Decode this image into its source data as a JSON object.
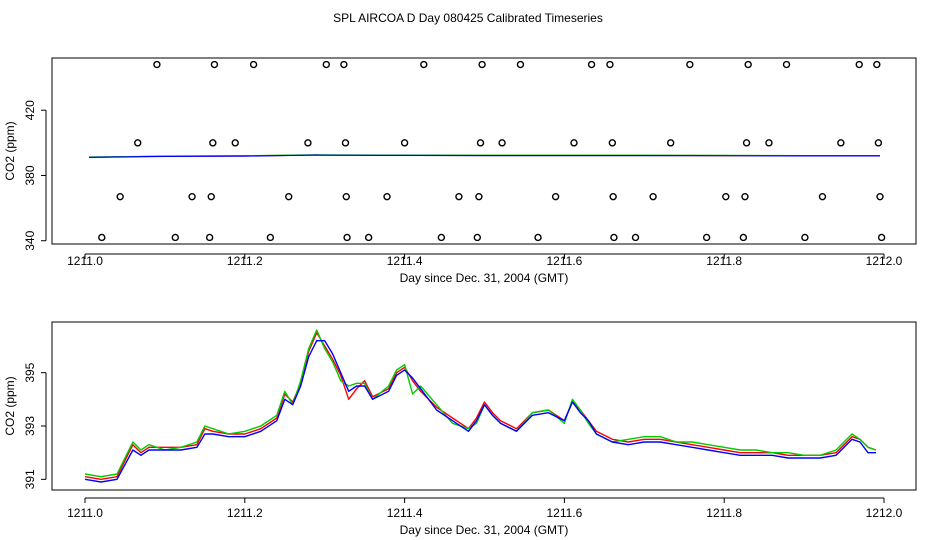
{
  "title": "SPL AIRCOA D  Day 080425  Calibrated Timeseries",
  "chart_data": [
    {
      "type": "scatter",
      "xlabel": "Day since Dec. 31, 2004 (GMT)",
      "ylabel": "CO2 (ppm)",
      "xlim": [
        1211.0,
        1212.0
      ],
      "ylim": [
        338,
        452
      ],
      "xticks": [
        "1211.0",
        "1211.2",
        "1211.4",
        "1211.6",
        "1211.8",
        "1212.0"
      ],
      "yticks": [
        "340",
        "380",
        "420"
      ],
      "points": [
        {
          "x": 1211.021,
          "y": 342
        },
        {
          "x": 1211.113,
          "y": 342
        },
        {
          "x": 1211.156,
          "y": 342
        },
        {
          "x": 1211.232,
          "y": 342
        },
        {
          "x": 1211.328,
          "y": 342
        },
        {
          "x": 1211.355,
          "y": 342
        },
        {
          "x": 1211.446,
          "y": 342
        },
        {
          "x": 1211.491,
          "y": 342
        },
        {
          "x": 1211.567,
          "y": 342
        },
        {
          "x": 1211.662,
          "y": 342
        },
        {
          "x": 1211.689,
          "y": 342
        },
        {
          "x": 1211.778,
          "y": 342
        },
        {
          "x": 1211.824,
          "y": 342
        },
        {
          "x": 1211.901,
          "y": 342
        },
        {
          "x": 1211.997,
          "y": 342
        },
        {
          "x": 1211.044,
          "y": 367
        },
        {
          "x": 1211.134,
          "y": 367
        },
        {
          "x": 1211.158,
          "y": 367
        },
        {
          "x": 1211.255,
          "y": 367
        },
        {
          "x": 1211.327,
          "y": 367
        },
        {
          "x": 1211.378,
          "y": 367
        },
        {
          "x": 1211.468,
          "y": 367
        },
        {
          "x": 1211.493,
          "y": 367
        },
        {
          "x": 1211.589,
          "y": 367
        },
        {
          "x": 1211.661,
          "y": 367
        },
        {
          "x": 1211.711,
          "y": 367
        },
        {
          "x": 1211.802,
          "y": 367
        },
        {
          "x": 1211.826,
          "y": 367
        },
        {
          "x": 1211.923,
          "y": 367
        },
        {
          "x": 1211.995,
          "y": 367
        },
        {
          "x": 1211.066,
          "y": 400
        },
        {
          "x": 1211.16,
          "y": 400
        },
        {
          "x": 1211.188,
          "y": 400
        },
        {
          "x": 1211.279,
          "y": 400
        },
        {
          "x": 1211.326,
          "y": 400
        },
        {
          "x": 1211.4,
          "y": 400
        },
        {
          "x": 1211.495,
          "y": 400
        },
        {
          "x": 1211.522,
          "y": 400
        },
        {
          "x": 1211.612,
          "y": 400
        },
        {
          "x": 1211.66,
          "y": 400
        },
        {
          "x": 1211.733,
          "y": 400
        },
        {
          "x": 1211.828,
          "y": 400
        },
        {
          "x": 1211.856,
          "y": 400
        },
        {
          "x": 1211.946,
          "y": 400
        },
        {
          "x": 1211.993,
          "y": 400
        },
        {
          "x": 1211.09,
          "y": 448
        },
        {
          "x": 1211.162,
          "y": 448
        },
        {
          "x": 1211.211,
          "y": 448
        },
        {
          "x": 1211.302,
          "y": 448
        },
        {
          "x": 1211.324,
          "y": 448
        },
        {
          "x": 1211.424,
          "y": 448
        },
        {
          "x": 1211.497,
          "y": 448
        },
        {
          "x": 1211.545,
          "y": 448
        },
        {
          "x": 1211.634,
          "y": 448
        },
        {
          "x": 1211.657,
          "y": 448
        },
        {
          "x": 1211.757,
          "y": 448
        },
        {
          "x": 1211.83,
          "y": 448
        },
        {
          "x": 1211.878,
          "y": 448
        },
        {
          "x": 1211.969,
          "y": 448
        },
        {
          "x": 1211.991,
          "y": 448
        }
      ],
      "series": [
        {
          "name": "red",
          "color": "#ff0000",
          "x": [
            1211.005,
            1211.1,
            1211.2,
            1211.28,
            1211.29,
            1211.3,
            1211.4,
            1211.5,
            1211.6,
            1211.7,
            1211.8,
            1211.9,
            1211.96,
            1211.995
          ],
          "y": [
            391.2,
            391.8,
            392.0,
            392.5,
            392.6,
            392.5,
            392.4,
            392.3,
            392.3,
            392.3,
            392.2,
            392.1,
            392.1,
            392.1
          ]
        },
        {
          "name": "green",
          "color": "#00cc00",
          "x": [
            1211.005,
            1211.1,
            1211.2,
            1211.28,
            1211.29,
            1211.3,
            1211.4,
            1211.5,
            1211.6,
            1211.7,
            1211.8,
            1211.9,
            1211.96,
            1211.995
          ],
          "y": [
            391.3,
            391.9,
            392.1,
            392.6,
            392.7,
            392.6,
            392.5,
            392.4,
            392.4,
            392.4,
            392.3,
            392.2,
            392.2,
            392.2
          ]
        },
        {
          "name": "blue",
          "color": "#0000ff",
          "x": [
            1211.005,
            1211.1,
            1211.2,
            1211.28,
            1211.29,
            1211.3,
            1211.4,
            1211.5,
            1211.6,
            1211.7,
            1211.8,
            1211.9,
            1211.96,
            1211.995
          ],
          "y": [
            391.1,
            391.7,
            391.9,
            392.4,
            392.5,
            392.4,
            392.3,
            392.2,
            392.2,
            392.2,
            392.1,
            392.0,
            392.0,
            392.0
          ]
        }
      ]
    },
    {
      "type": "line",
      "xlabel": "Day since Dec. 31, 2004 (GMT)",
      "ylabel": "CO2 (ppm)",
      "xlim": [
        1211.0,
        1212.0
      ],
      "ylim": [
        390.6,
        396.9
      ],
      "xticks": [
        "1211.0",
        "1211.2",
        "1211.4",
        "1211.6",
        "1211.8",
        "1212.0"
      ],
      "yticks": [
        "391",
        "393",
        "395"
      ],
      "x": [
        1211.0,
        1211.02,
        1211.04,
        1211.06,
        1211.07,
        1211.08,
        1211.1,
        1211.12,
        1211.14,
        1211.15,
        1211.16,
        1211.18,
        1211.2,
        1211.22,
        1211.24,
        1211.25,
        1211.26,
        1211.27,
        1211.28,
        1211.29,
        1211.3,
        1211.31,
        1211.32,
        1211.33,
        1211.34,
        1211.35,
        1211.36,
        1211.38,
        1211.39,
        1211.4,
        1211.41,
        1211.42,
        1211.44,
        1211.46,
        1211.48,
        1211.49,
        1211.5,
        1211.51,
        1211.52,
        1211.54,
        1211.56,
        1211.58,
        1211.6,
        1211.61,
        1211.62,
        1211.63,
        1211.64,
        1211.66,
        1211.68,
        1211.7,
        1211.72,
        1211.74,
        1211.76,
        1211.78,
        1211.8,
        1211.82,
        1211.84,
        1211.86,
        1211.88,
        1211.9,
        1211.92,
        1211.94,
        1211.96,
        1211.97,
        1211.98,
        1211.99
      ],
      "series": [
        {
          "name": "red",
          "color": "#ff0000",
          "y": [
            391.1,
            391.0,
            391.1,
            392.3,
            392.0,
            392.2,
            392.2,
            392.2,
            392.3,
            392.9,
            392.8,
            392.7,
            392.7,
            392.9,
            393.3,
            394.2,
            393.9,
            394.6,
            395.8,
            396.5,
            396.0,
            395.5,
            394.9,
            394.0,
            394.4,
            394.7,
            394.1,
            394.4,
            395.0,
            395.2,
            394.7,
            394.3,
            393.7,
            393.3,
            392.9,
            393.3,
            393.9,
            393.5,
            393.2,
            392.9,
            393.5,
            393.6,
            393.2,
            393.9,
            393.6,
            393.2,
            392.8,
            392.5,
            392.4,
            392.5,
            392.5,
            392.4,
            392.3,
            392.2,
            392.1,
            392.0,
            392.0,
            392.0,
            391.9,
            391.9,
            391.9,
            392.0,
            392.6,
            392.5,
            392.2,
            392.1
          ]
        },
        {
          "name": "green",
          "color": "#00cc00",
          "y": [
            391.2,
            391.1,
            391.2,
            392.4,
            392.1,
            392.3,
            392.1,
            392.2,
            392.4,
            393.0,
            392.9,
            392.7,
            392.8,
            393.0,
            393.4,
            394.3,
            393.8,
            394.7,
            395.9,
            396.6,
            395.9,
            395.4,
            394.7,
            394.5,
            394.6,
            394.6,
            394.0,
            394.5,
            395.1,
            395.3,
            394.2,
            394.5,
            393.8,
            393.1,
            392.9,
            393.1,
            393.8,
            393.4,
            393.1,
            392.8,
            393.5,
            393.6,
            393.1,
            394.0,
            393.6,
            393.1,
            392.7,
            392.4,
            392.5,
            392.6,
            392.6,
            392.4,
            392.4,
            392.3,
            392.2,
            392.1,
            392.1,
            392.0,
            392.0,
            391.9,
            391.9,
            392.1,
            392.7,
            392.5,
            392.2,
            392.1
          ]
        },
        {
          "name": "blue",
          "color": "#0000ff",
          "y": [
            391.0,
            390.9,
            391.0,
            392.1,
            391.9,
            392.1,
            392.1,
            392.1,
            392.2,
            392.7,
            392.7,
            392.6,
            392.6,
            392.8,
            393.2,
            394.0,
            393.8,
            394.5,
            395.6,
            396.2,
            396.2,
            395.7,
            395.0,
            394.3,
            394.5,
            394.5,
            394.0,
            394.3,
            394.9,
            395.1,
            394.8,
            394.4,
            393.6,
            393.2,
            392.8,
            393.2,
            393.8,
            393.4,
            393.1,
            392.8,
            393.4,
            393.5,
            393.2,
            393.9,
            393.5,
            393.2,
            392.7,
            392.4,
            392.3,
            392.4,
            392.4,
            392.3,
            392.2,
            392.1,
            392.0,
            391.9,
            391.9,
            391.9,
            391.8,
            391.8,
            391.8,
            391.9,
            392.5,
            392.4,
            392.0,
            392.0
          ]
        }
      ]
    }
  ]
}
